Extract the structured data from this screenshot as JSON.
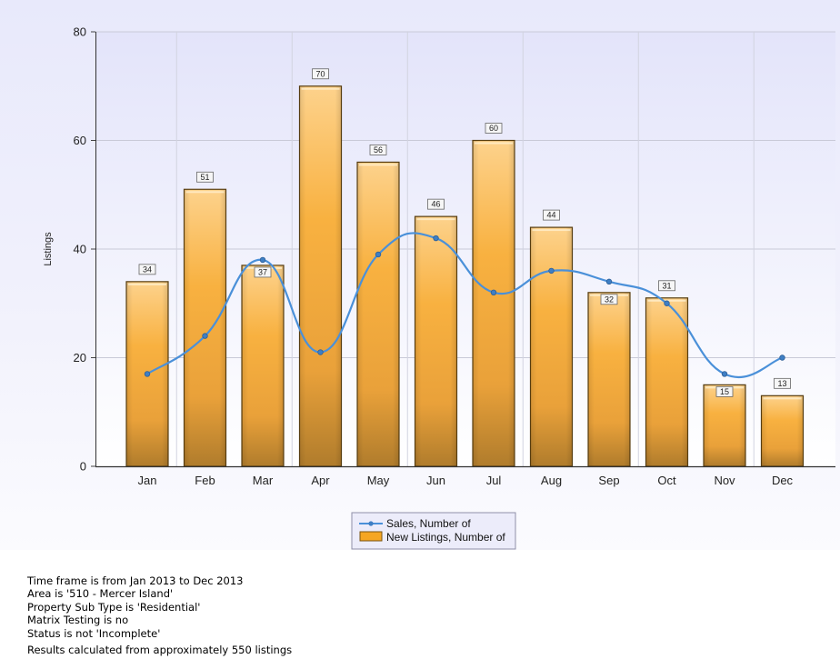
{
  "chart_data": {
    "type": "bar",
    "title": "",
    "xlabel": "",
    "ylabel": "Listings",
    "ylim": [
      0,
      80
    ],
    "yticks": [
      0,
      20,
      40,
      60,
      80
    ],
    "grid": true,
    "categories": [
      "Jan",
      "Feb",
      "Mar",
      "Apr",
      "May",
      "Jun",
      "Jul",
      "Aug",
      "Sep",
      "Oct",
      "Nov",
      "Dec"
    ],
    "series": [
      {
        "name": "New Listings, Number of",
        "type": "bar",
        "color": "#F5A623",
        "values": [
          34,
          51,
          37,
          70,
          56,
          46,
          60,
          44,
          32,
          31,
          15,
          13
        ]
      },
      {
        "name": "Sales, Number of",
        "type": "line",
        "color": "#4A90D9",
        "values": [
          17,
          24,
          38,
          21,
          39,
          42,
          32,
          36,
          34,
          30,
          17,
          20
        ]
      }
    ],
    "legend_position": "bottom-center"
  },
  "notes": {
    "lines": [
      "Time frame is from Jan 2013 to Dec 2013",
      "Area is '510 - Mercer Island'",
      "Property Sub Type is 'Residential'",
      "Matrix Testing is no",
      "Status is not 'Incomplete'"
    ],
    "results": "Results calculated from approximately 550 listings"
  }
}
